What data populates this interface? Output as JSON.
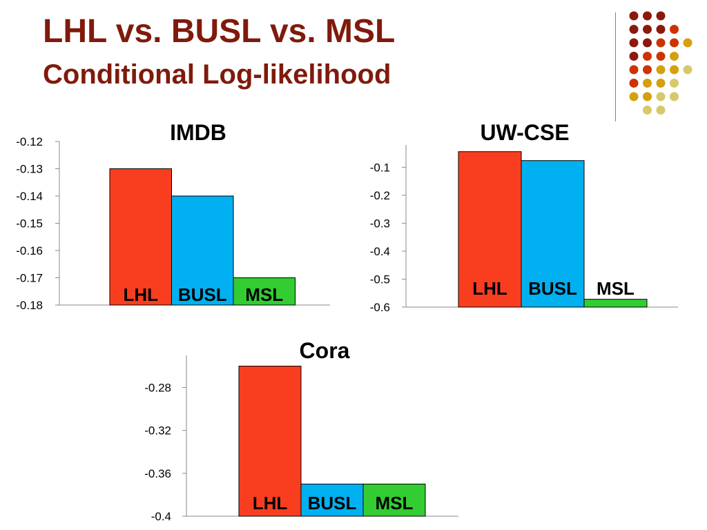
{
  "slide": {
    "title": "LHL vs. BUSL vs. MSL",
    "subtitle": "Conditional Log-likelihood"
  },
  "colors": {
    "title": "#7f1a0c",
    "decor": [
      "#8b1a0a",
      "#cc3300",
      "#d4a00d",
      "#d6c96a"
    ]
  },
  "chart_data": [
    {
      "type": "bar",
      "title": "IMDB",
      "categories": [
        "LHL",
        "BUSL",
        "MSL"
      ],
      "values": [
        -0.13,
        -0.14,
        -0.17
      ],
      "colors": [
        "#f93e20",
        "#00b0f0",
        "#33cc33"
      ],
      "ylim": [
        -0.18,
        -0.12
      ],
      "yticks": [
        "-0.12",
        "-0.13",
        "-0.14",
        "-0.15",
        "-0.16",
        "-0.17",
        "-0.18"
      ],
      "xlabel": "",
      "ylabel": "",
      "grid": false,
      "legend": "none"
    },
    {
      "type": "bar",
      "title": "UW-CSE",
      "categories": [
        "LHL",
        "BUSL",
        "MSL"
      ],
      "values": [
        -0.044,
        -0.076,
        -0.572
      ],
      "colors": [
        "#f93e20",
        "#00b0f0",
        "#33cc33"
      ],
      "ylim": [
        -0.6,
        -0.02
      ],
      "yticks": [
        "-0.1",
        "-0.2",
        "-0.3",
        "-0.4",
        "-0.5",
        "-0.6"
      ],
      "xlabel": "",
      "ylabel": "",
      "grid": false,
      "legend": "none"
    },
    {
      "type": "bar",
      "title": "Cora",
      "categories": [
        "LHL",
        "BUSL",
        "MSL"
      ],
      "values": [
        -0.26,
        -0.37,
        -0.37
      ],
      "colors": [
        "#f93e20",
        "#00b0f0",
        "#33cc33"
      ],
      "ylim": [
        -0.4,
        -0.25
      ],
      "yticks": [
        "-0.28",
        "-0.32",
        "-0.36",
        "-0.4"
      ],
      "xlabel": "",
      "ylabel": "",
      "grid": false,
      "legend": "none"
    }
  ]
}
